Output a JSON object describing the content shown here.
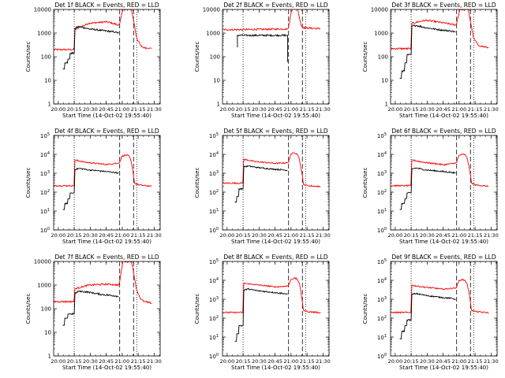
{
  "chart_data": [
    {
      "type": "line",
      "title": "Det 1f BLACK = Events, RED = LLD",
      "xlabel": "Start Time (14-Oct-02 19:55:40)",
      "ylabel": "Counts/sec",
      "x_tick_labels": [
        "20:00",
        "20:15",
        "20:30",
        "20:45",
        "21:00",
        "21:15",
        "21:30"
      ],
      "x_tick_minutes": [
        4.33,
        19.33,
        34.33,
        49.33,
        64.33,
        79.33,
        94.33
      ],
      "xlim_minutes": [
        0,
        100
      ],
      "y_scale": "log",
      "y_tick_style": "plain",
      "y_tick_labels": [
        "1",
        "10",
        "100",
        "1000",
        "10000"
      ],
      "ylim": [
        1,
        10000
      ],
      "markers_minutes": {
        "dotted": [
          19.3,
          78.0
        ],
        "dashed": [
          62.0,
          75.0
        ]
      },
      "series": [
        {
          "color": "#000000",
          "x": [
            4,
            5,
            19.3,
            20,
            40,
            60
          ],
          "y": [
            null,
            null,
            null,
            null,
            null,
            null
          ]
        },
        {
          "color": "#ff0000",
          "x": [
            0,
            19,
            20,
            33,
            50,
            61,
            62,
            65,
            70,
            73,
            75,
            78,
            82,
            85,
            90,
            92
          ],
          "y": [
            200,
            200,
            1400,
            2600,
            3000,
            2200,
            2500,
            10000,
            10000,
            10000,
            3500,
            600,
            280,
            240,
            230,
            220
          ]
        },
        {
          "color": "#000000",
          "x": [
            8.5,
            10,
            10.5,
            13,
            13.5,
            15,
            15.5,
            19,
            19.3,
            20,
            24,
            33,
            45,
            58,
            61
          ],
          "y": [
            30,
            30,
            55,
            55,
            80,
            80,
            140,
            140,
            140,
            1600,
            1900,
            1500,
            1300,
            1100,
            1000
          ]
        }
      ]
    },
    {
      "type": "line",
      "title": "Det 2f BLACK = Events, RED = LLD",
      "xlabel": "Start Time (14-Oct-02 19:55:40)",
      "ylabel": "Counts/sec",
      "x_tick_labels": [
        "20:00",
        "20:15",
        "20:30",
        "20:45",
        "21:00",
        "21:15",
        "21:30"
      ],
      "x_tick_minutes": [
        4.33,
        19.33,
        34.33,
        49.33,
        64.33,
        79.33,
        94.33
      ],
      "xlim_minutes": [
        0,
        100
      ],
      "y_scale": "log",
      "y_tick_style": "plain",
      "y_tick_labels": [
        "1",
        "10",
        "100",
        "1000",
        "10000"
      ],
      "ylim": [
        1,
        10000
      ],
      "markers_minutes": {
        "dotted": [
          19.3,
          78.0
        ],
        "dashed": [
          62.0,
          75.0
        ]
      },
      "series": [
        {
          "color": "#ff0000",
          "x": [
            0,
            19,
            40,
            61,
            62,
            64,
            66,
            70,
            72,
            74,
            76,
            80,
            90,
            92
          ],
          "y": [
            1400,
            1400,
            1450,
            1500,
            1700,
            6000,
            13000,
            13000,
            5000,
            2000,
            1700,
            1650,
            1550,
            1500
          ]
        },
        {
          "color": "#000000",
          "x": [
            14,
            14,
            61,
            61
          ],
          "y": [
            250,
            800,
            800,
            60
          ]
        }
      ]
    },
    {
      "type": "line",
      "title": "Det 3f BLACK = Events, RED = LLD",
      "xlabel": "Start Time (14-Oct-02 19:55:40)",
      "ylabel": "Counts/sec",
      "x_tick_labels": [
        "20:00",
        "20:15",
        "20:30",
        "20:45",
        "21:00",
        "21:15",
        "21:30"
      ],
      "x_tick_minutes": [
        4.33,
        19.33,
        34.33,
        49.33,
        64.33,
        79.33,
        94.33
      ],
      "xlim_minutes": [
        0,
        100
      ],
      "y_scale": "log",
      "y_tick_style": "plain",
      "y_tick_labels": [
        "1",
        "10",
        "100",
        "1000",
        "10000"
      ],
      "ylim": [
        1,
        10000
      ],
      "markers_minutes": {
        "dotted": [
          19.3,
          78.0
        ],
        "dashed": [
          62.0,
          75.0
        ]
      },
      "series": [
        {
          "color": "#ff0000",
          "x": [
            0,
            19,
            20,
            33,
            50,
            61,
            62,
            65,
            70,
            73,
            75,
            78,
            82,
            85,
            90,
            92
          ],
          "y": [
            220,
            220,
            2600,
            3500,
            2700,
            2200,
            2500,
            10000,
            10000,
            10000,
            3000,
            600,
            320,
            280,
            250,
            240
          ]
        },
        {
          "color": "#000000",
          "x": [
            8.5,
            10,
            10.5,
            13,
            13.5,
            15,
            15.5,
            19,
            19.3,
            20,
            24,
            33,
            45,
            58,
            61
          ],
          "y": [
            12,
            12,
            25,
            25,
            55,
            55,
            120,
            120,
            120,
            2000,
            2100,
            1700,
            1400,
            1200,
            1100
          ]
        }
      ]
    },
    {
      "type": "line",
      "title": "Det 4f BLACK = Events, RED = LLD",
      "xlabel": "Start Time (14-Oct-02 19:55:40)",
      "ylabel": "Counts/sec",
      "x_tick_labels": [
        "20:00",
        "20:15",
        "20:30",
        "20:45",
        "21:00",
        "21:15",
        "21:30"
      ],
      "x_tick_minutes": [
        4.33,
        19.33,
        34.33,
        49.33,
        64.33,
        79.33,
        94.33
      ],
      "xlim_minutes": [
        0,
        100
      ],
      "y_scale": "log",
      "y_tick_style": "power",
      "y_tick_labels": [
        "10",
        "10",
        "10",
        "10",
        "10",
        "10"
      ],
      "y_tick_exponents": [
        "0",
        "1",
        "2",
        "3",
        "4",
        "5"
      ],
      "ylim": [
        1,
        100000
      ],
      "markers_minutes": {
        "dotted": [
          19.3,
          78.0
        ],
        "dashed": [
          62.0,
          75.0
        ]
      },
      "series": [
        {
          "color": "#ff0000",
          "x": [
            0,
            19,
            20,
            30,
            50,
            61,
            62,
            64,
            67,
            70,
            72,
            74,
            76,
            80,
            90,
            92
          ],
          "y": [
            220,
            220,
            5000,
            3800,
            2900,
            3500,
            3700,
            8000,
            9000,
            9000,
            6000,
            1800,
            300,
            240,
            210,
            200
          ]
        },
        {
          "color": "#000000",
          "x": [
            8.5,
            10,
            10.5,
            13,
            13.5,
            15,
            15.5,
            19,
            19.3,
            20,
            24,
            33,
            45,
            58,
            61
          ],
          "y": [
            12,
            12,
            25,
            25,
            45,
            45,
            90,
            90,
            90,
            1600,
            1800,
            1500,
            1300,
            1100,
            1000
          ]
        }
      ]
    },
    {
      "type": "line",
      "title": "Det 5f BLACK = Events, RED = LLD",
      "xlabel": "Start Time (14-Oct-02 19:55:40)",
      "ylabel": "Counts/sec",
      "x_tick_labels": [
        "20:00",
        "20:15",
        "20:30",
        "20:45",
        "21:00",
        "21:15",
        "21:30"
      ],
      "x_tick_minutes": [
        4.33,
        19.33,
        34.33,
        49.33,
        64.33,
        79.33,
        94.33
      ],
      "xlim_minutes": [
        0,
        100
      ],
      "y_scale": "log",
      "y_tick_style": "power",
      "y_tick_labels": [
        "10",
        "10",
        "10",
        "10",
        "10",
        "10"
      ],
      "y_tick_exponents": [
        "0",
        "1",
        "2",
        "3",
        "4",
        "5"
      ],
      "ylim": [
        1,
        100000
      ],
      "markers_minutes": {
        "dotted": [
          19.3,
          78.0
        ],
        "dashed": [
          62.0,
          75.0
        ]
      },
      "series": [
        {
          "color": "#ff0000",
          "x": [
            0,
            10,
            19,
            20,
            30,
            50,
            61,
            62,
            64,
            67,
            70,
            72,
            74,
            76,
            80,
            90,
            92
          ],
          "y": [
            300,
            300,
            300,
            5500,
            4200,
            3300,
            3600,
            3800,
            10000,
            12000,
            11000,
            6000,
            1500,
            260,
            220,
            200,
            190
          ]
        },
        {
          "color": "#000000",
          "x": [
            11.5,
            13,
            13.5,
            15,
            15.5,
            19,
            19.3,
            20,
            24,
            33,
            45,
            58,
            61
          ],
          "y": [
            30,
            30,
            60,
            60,
            150,
            150,
            150,
            2200,
            2400,
            2000,
            1700,
            1500,
            1400
          ]
        }
      ]
    },
    {
      "type": "line",
      "title": "Det 6f BLACK = Events, RED = LLD",
      "xlabel": "Start Time (14-Oct-02 19:55:40)",
      "ylabel": "Counts/sec",
      "x_tick_labels": [
        "20:00",
        "20:15",
        "20:30",
        "20:45",
        "21:00",
        "21:15",
        "21:30"
      ],
      "x_tick_minutes": [
        4.33,
        19.33,
        34.33,
        49.33,
        64.33,
        79.33,
        94.33
      ],
      "xlim_minutes": [
        0,
        100
      ],
      "y_scale": "log",
      "y_tick_style": "power",
      "y_tick_labels": [
        "10",
        "10",
        "10",
        "10",
        "10",
        "10"
      ],
      "y_tick_exponents": [
        "0",
        "1",
        "2",
        "3",
        "4",
        "5"
      ],
      "ylim": [
        1,
        100000
      ],
      "markers_minutes": {
        "dotted": [
          19.3,
          78.0
        ],
        "dashed": [
          62.0,
          75.0
        ]
      },
      "series": [
        {
          "color": "#ff0000",
          "x": [
            0,
            19,
            20,
            30,
            50,
            61,
            62,
            64,
            67,
            70,
            72,
            74,
            76,
            80,
            90,
            92
          ],
          "y": [
            220,
            220,
            5000,
            3900,
            2800,
            3500,
            3700,
            8500,
            10000,
            9500,
            6000,
            1800,
            300,
            240,
            210,
            200
          ]
        },
        {
          "color": "#000000",
          "x": [
            8.5,
            10,
            10.5,
            13,
            13.5,
            15,
            15.5,
            19,
            19.3,
            20,
            24,
            33,
            45,
            58,
            61
          ],
          "y": [
            12,
            12,
            25,
            25,
            45,
            45,
            90,
            90,
            90,
            1700,
            1900,
            1500,
            1300,
            1100,
            1000
          ]
        }
      ]
    },
    {
      "type": "line",
      "title": "Det 7f BLACK = Events, RED = LLD",
      "xlabel": "Start Time (14-Oct-02 19:55:40)",
      "ylabel": "Counts/sec",
      "x_tick_labels": [
        "20:00",
        "20:15",
        "20:30",
        "20:45",
        "21:00",
        "21:15",
        "21:30"
      ],
      "x_tick_minutes": [
        4.33,
        19.33,
        34.33,
        49.33,
        64.33,
        79.33,
        94.33
      ],
      "xlim_minutes": [
        0,
        100
      ],
      "y_scale": "log",
      "y_tick_style": "plain",
      "y_tick_labels": [
        "1",
        "10",
        "100",
        "1000",
        "10000"
      ],
      "ylim": [
        1,
        10000
      ],
      "markers_minutes": {
        "dotted": [
          19.3,
          78.0
        ],
        "dashed": [
          62.0,
          75.0
        ]
      },
      "series": [
        {
          "color": "#ff0000",
          "x": [
            0,
            19,
            20,
            33,
            50,
            61,
            62,
            65,
            70,
            73,
            75,
            78,
            82,
            85,
            90,
            92
          ],
          "y": [
            200,
            200,
            700,
            1000,
            1100,
            1000,
            1400,
            10000,
            10000,
            10000,
            3500,
            600,
            250,
            200,
            180,
            170
          ]
        },
        {
          "color": "#000000",
          "x": [
            8.5,
            10,
            10.5,
            13,
            13.5,
            15,
            15.5,
            19,
            19.3,
            20,
            24,
            33,
            45,
            58,
            61
          ],
          "y": [
            20,
            20,
            40,
            40,
            60,
            60,
            60,
            60,
            60,
            450,
            550,
            500,
            400,
            350,
            320
          ]
        }
      ]
    },
    {
      "type": "line",
      "title": "Det 8f BLACK = Events, RED = LLD",
      "xlabel": "Start Time (14-Oct-02 19:55:40)",
      "ylabel": "Counts/sec",
      "x_tick_labels": [
        "20:00",
        "20:15",
        "20:30",
        "20:45",
        "21:00",
        "21:15",
        "21:30"
      ],
      "x_tick_minutes": [
        4.33,
        19.33,
        34.33,
        49.33,
        64.33,
        79.33,
        94.33
      ],
      "xlim_minutes": [
        0,
        100
      ],
      "y_scale": "log",
      "y_tick_style": "power",
      "y_tick_labels": [
        "10",
        "10",
        "10",
        "10",
        "10",
        "10"
      ],
      "y_tick_exponents": [
        "0",
        "1",
        "2",
        "3",
        "4",
        "5"
      ],
      "ylim": [
        1,
        100000
      ],
      "markers_minutes": {
        "dotted": [
          19.3,
          78.0
        ],
        "dashed": [
          62.0,
          75.0
        ]
      },
      "series": [
        {
          "color": "#ff0000",
          "x": [
            0,
            10,
            19,
            20,
            30,
            50,
            61,
            62,
            64,
            67,
            70,
            72,
            74,
            76,
            80,
            90,
            92
          ],
          "y": [
            200,
            200,
            200,
            7000,
            6000,
            4500,
            5000,
            5200,
            11000,
            13000,
            12000,
            7000,
            1800,
            260,
            220,
            200,
            190
          ]
        },
        {
          "color": "#000000",
          "x": [
            11.5,
            13,
            13.5,
            15,
            15.5,
            19,
            19.3,
            20,
            24,
            33,
            45,
            58,
            61
          ],
          "y": [
            6,
            6,
            15,
            15,
            40,
            40,
            40,
            3000,
            3500,
            2800,
            2400,
            2000,
            1800
          ]
        }
      ]
    },
    {
      "type": "line",
      "title": "Det 9f BLACK = Events, RED = LLD",
      "xlabel": "Start Time (14-Oct-02 19:55:40)",
      "ylabel": "Counts/sec",
      "x_tick_labels": [
        "20:00",
        "20:15",
        "20:30",
        "20:45",
        "21:00",
        "21:15",
        "21:30"
      ],
      "x_tick_minutes": [
        4.33,
        19.33,
        34.33,
        49.33,
        64.33,
        79.33,
        94.33
      ],
      "xlim_minutes": [
        0,
        100
      ],
      "y_scale": "log",
      "y_tick_style": "power",
      "y_tick_labels": [
        "10",
        "10",
        "10",
        "10",
        "10",
        "10"
      ],
      "y_tick_exponents": [
        "0",
        "1",
        "2",
        "3",
        "4",
        "5"
      ],
      "ylim": [
        1,
        100000
      ],
      "markers_minutes": {
        "dotted": [
          19.3,
          78.0
        ],
        "dashed": [
          62.0,
          75.0
        ]
      },
      "series": [
        {
          "color": "#ff0000",
          "x": [
            0,
            19,
            20,
            30,
            50,
            61,
            62,
            64,
            67,
            70,
            72,
            74,
            76,
            80,
            90,
            92
          ],
          "y": [
            200,
            200,
            5500,
            4500,
            3400,
            4000,
            4200,
            9500,
            11000,
            10000,
            6000,
            1700,
            260,
            220,
            200,
            190
          ]
        },
        {
          "color": "#000000",
          "x": [
            8.5,
            10,
            10.5,
            13,
            13.5,
            15,
            15.5,
            19,
            19.3,
            20,
            24,
            33,
            45,
            58,
            61
          ],
          "y": [
            8,
            8,
            20,
            20,
            40,
            40,
            80,
            80,
            80,
            1800,
            2000,
            1600,
            1300,
            1100,
            1000
          ]
        }
      ]
    }
  ]
}
